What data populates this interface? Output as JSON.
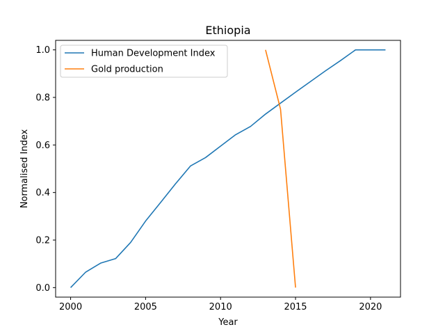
{
  "chart_data": {
    "type": "line",
    "title": "Ethiopia",
    "xlabel": "Year",
    "ylabel": "Normalised Index",
    "xlim": [
      1999.0,
      2022.0
    ],
    "ylim": [
      -0.04,
      1.04
    ],
    "xticks": [
      2000,
      2005,
      2010,
      2015,
      2020
    ],
    "yticks": [
      0.0,
      0.2,
      0.4,
      0.6,
      0.8,
      1.0
    ],
    "xtick_labels": [
      "2000",
      "2005",
      "2010",
      "2015",
      "2020"
    ],
    "ytick_labels": [
      "0.0",
      "0.2",
      "0.4",
      "0.6",
      "0.8",
      "1.0"
    ],
    "grid": false,
    "legend_position": "top-left",
    "series": [
      {
        "name": "Human Development Index",
        "color": "#1f77b4",
        "x": [
          2000,
          2001,
          2002,
          2003,
          2004,
          2005,
          2006,
          2007,
          2008,
          2009,
          2010,
          2011,
          2012,
          2013,
          2014,
          2015,
          2016,
          2017,
          2018,
          2019,
          2020,
          2021
        ],
        "y": [
          0.0,
          0.065,
          0.103,
          0.122,
          0.19,
          0.28,
          0.358,
          0.437,
          0.512,
          0.547,
          0.595,
          0.643,
          0.678,
          0.73,
          0.776,
          0.822,
          0.867,
          0.912,
          0.955,
          1.0,
          1.0,
          1.0
        ]
      },
      {
        "name": "Gold production",
        "color": "#ff7f0e",
        "x": [
          2013,
          2014,
          2015
        ],
        "y": [
          1.0,
          0.75,
          0.0
        ]
      }
    ]
  }
}
